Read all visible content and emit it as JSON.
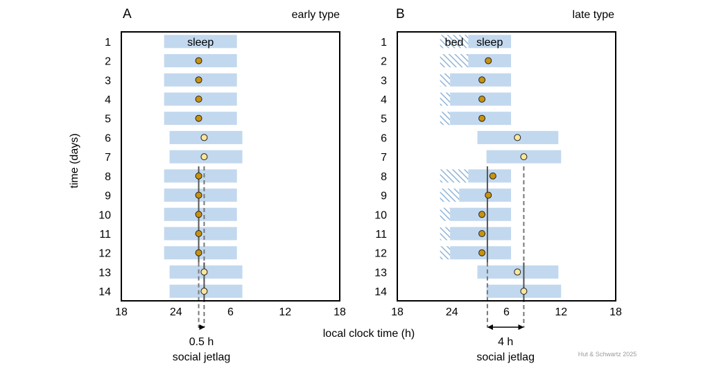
{
  "chart_data": [
    {
      "type": "sleep-timeline",
      "panel_letter": "A",
      "title": "early type",
      "xlabel": "local clock time (h)",
      "ylabel": "time (days)",
      "x_tick_labels": [
        "18",
        "24",
        "6",
        "12",
        "18"
      ],
      "x_tick_hours": [
        18,
        24,
        30,
        36,
        42
      ],
      "xlim_hours": [
        18,
        42
      ],
      "days": [
        1,
        2,
        3,
        4,
        5,
        6,
        7,
        8,
        9,
        10,
        11,
        12,
        13,
        14
      ],
      "ylim_days": [
        0.5,
        14.5
      ],
      "legend_labels": {
        "sleep": "sleep"
      },
      "sleep_onset_hours": [
        22.7,
        22.7,
        22.7,
        22.7,
        22.7,
        23.3,
        23.3,
        22.7,
        22.7,
        22.7,
        22.7,
        22.7,
        23.3,
        23.3
      ],
      "sleep_offset_hours": [
        30.7,
        30.7,
        30.7,
        30.7,
        30.7,
        31.3,
        31.3,
        30.7,
        30.7,
        30.7,
        30.7,
        30.7,
        31.3,
        31.3
      ],
      "mid_sleep_hours": [
        null,
        26.5,
        26.5,
        26.5,
        26.5,
        27.1,
        27.1,
        26.5,
        26.5,
        26.5,
        26.5,
        26.5,
        27.1,
        27.1
      ],
      "free_days": [
        6,
        7,
        13,
        14
      ],
      "bed_before_sleep": [],
      "solid_lines": [
        {
          "hour": 26.5,
          "from_day": 7.5,
          "to_day": 12.5
        },
        {
          "hour": 27.1,
          "from_day": 12.5,
          "to_day": 14.5
        }
      ],
      "dashed_lines": [
        {
          "hour": 26.5,
          "from_day": 12.5,
          "to_day": 15.9
        },
        {
          "hour": 27.1,
          "from_day": 7.5,
          "to_day": 15.9
        }
      ],
      "jetlag_label": "0.5 h",
      "jetlag_caption": "social jetlag",
      "jetlag_hours": 0.5
    },
    {
      "type": "sleep-timeline",
      "panel_letter": "B",
      "title": "late type",
      "xlabel": "local clock time (h)",
      "ylabel": "time (days)",
      "x_tick_labels": [
        "18",
        "24",
        "6",
        "12",
        "18"
      ],
      "x_tick_hours": [
        18,
        24,
        30,
        36,
        42
      ],
      "xlim_hours": [
        18,
        42
      ],
      "days": [
        1,
        2,
        3,
        4,
        5,
        6,
        7,
        8,
        9,
        10,
        11,
        12,
        13,
        14
      ],
      "ylim_days": [
        0.5,
        14.5
      ],
      "legend_labels": {
        "bed": "bed",
        "sleep": "sleep"
      },
      "bed_onset_hours": [
        22.7,
        22.7,
        22.7,
        22.7,
        22.7,
        null,
        null,
        22.7,
        22.7,
        22.7,
        22.7,
        22.7,
        null,
        null
      ],
      "sleep_onset_hours": [
        25.8,
        25.8,
        23.8,
        23.8,
        23.8,
        26.8,
        27.8,
        25.8,
        24.8,
        23.8,
        23.8,
        23.8,
        26.8,
        27.8
      ],
      "sleep_offset_hours": [
        30.5,
        30.5,
        30.5,
        30.5,
        30.5,
        35.7,
        36.0,
        30.5,
        30.5,
        30.5,
        30.5,
        30.5,
        35.7,
        36.0
      ],
      "mid_sleep_hours": [
        null,
        28.0,
        27.3,
        27.3,
        27.3,
        31.2,
        31.9,
        28.5,
        28.0,
        27.3,
        27.3,
        27.3,
        31.2,
        31.9
      ],
      "free_days": [
        6,
        7,
        13,
        14
      ],
      "solid_lines": [
        {
          "hour": 27.9,
          "from_day": 7.5,
          "to_day": 12.5
        },
        {
          "hour": 31.9,
          "from_day": 12.5,
          "to_day": 14.5
        }
      ],
      "dashed_lines": [
        {
          "hour": 27.9,
          "from_day": 12.5,
          "to_day": 15.9
        },
        {
          "hour": 31.9,
          "from_day": 7.5,
          "to_day": 15.9
        }
      ],
      "jetlag_label": "4 h",
      "jetlag_caption": "social jetlag",
      "jetlag_hours": 4
    }
  ],
  "colors": {
    "sleep_bar": "#c2d8ee",
    "bed_hatch": "#8fb4d9",
    "workday_dot": "#c8920e",
    "freeday_dot": "#fbe59a",
    "dot_stroke": "#222222",
    "line": "#555555",
    "frame": "#000000"
  },
  "credit": "Hut & Schwartz 2025"
}
